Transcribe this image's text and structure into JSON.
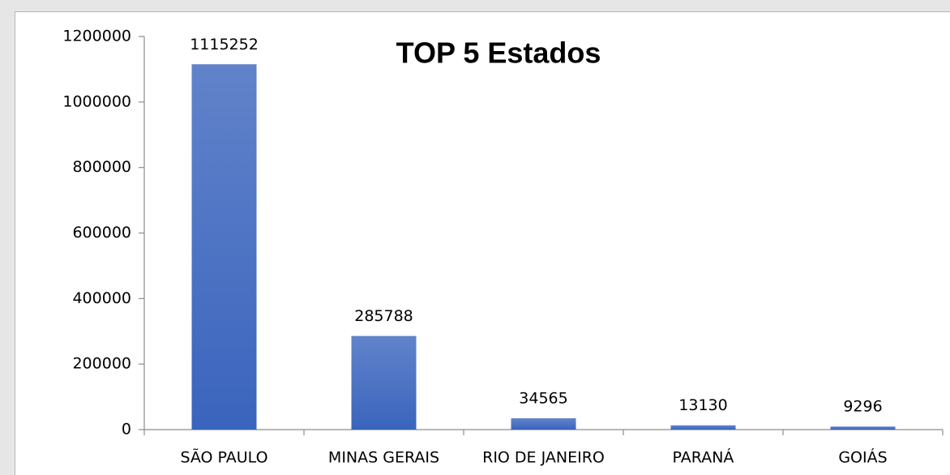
{
  "chart_data": {
    "type": "bar",
    "title": "TOP 5 Estados",
    "categories": [
      "SÃO PAULO",
      "MINAS GERAIS",
      "RIO DE JANEIRO",
      "PARANÁ",
      "GOIÁS"
    ],
    "values": [
      1115252,
      285788,
      34565,
      13130,
      9296
    ],
    "color": "#3a64bd",
    "ylim": [
      0,
      1200000
    ],
    "yticks": [
      0,
      200000,
      400000,
      600000,
      800000,
      1000000,
      1200000
    ],
    "grid": false
  }
}
